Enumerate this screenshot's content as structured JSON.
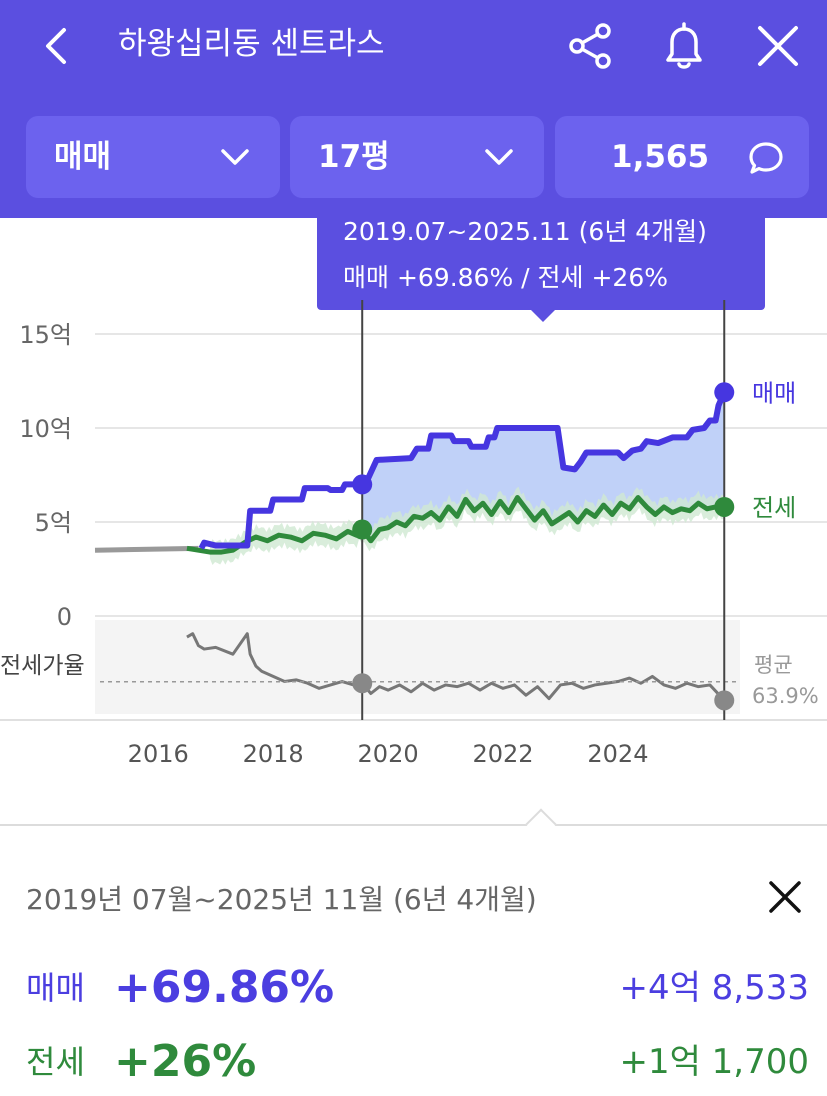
{
  "header": {
    "title": "하왕십리동 센트라스",
    "icons": [
      "back-icon",
      "share-icon",
      "bell-icon",
      "close-icon"
    ]
  },
  "filters": {
    "trade_type": "매매",
    "area": "17평",
    "comment_count": "1,565"
  },
  "tooltip": {
    "period": "2019.07~2025.11 (6년 4개월)",
    "change": "매매 +69.86%  /  전세 +26%"
  },
  "chart_data": {
    "type": "line",
    "x_ticks": [
      "2016",
      "2018",
      "2020",
      "2022",
      "2024"
    ],
    "y_ticks": [
      "15억",
      "10억",
      "5억",
      "0"
    ],
    "ylim": [
      0,
      15
    ],
    "xlim": [
      2014.9,
      2025.95
    ],
    "series": [
      {
        "name": "매매",
        "color": "#4636e0",
        "x": [
          2016.75,
          2016.8,
          2017.0,
          2017.2,
          2017.4,
          2017.55,
          2017.6,
          2017.95,
          2018.0,
          2018.5,
          2018.55,
          2018.95,
          2019.0,
          2019.2,
          2019.25,
          2019.45,
          2019.55,
          2019.65,
          2019.8,
          2020.4,
          2020.5,
          2020.7,
          2020.75,
          2021.1,
          2021.15,
          2021.4,
          2021.45,
          2021.7,
          2021.75,
          2021.85,
          2021.9,
          2022.0,
          2022.05,
          2022.95,
          2023.05,
          2023.25,
          2023.35,
          2023.45,
          2023.55,
          2024.0,
          2024.1,
          2024.25,
          2024.4,
          2024.5,
          2024.7,
          2024.95,
          2025.2,
          2025.3,
          2025.5,
          2025.6,
          2025.7,
          2025.75,
          2025.85
        ],
        "values": [
          3.6,
          3.9,
          3.75,
          3.75,
          3.75,
          3.75,
          5.6,
          5.6,
          6.2,
          6.2,
          6.8,
          6.8,
          6.7,
          6.7,
          7.0,
          7.0,
          7.0,
          7.3,
          8.3,
          8.4,
          8.9,
          8.9,
          9.6,
          9.6,
          9.3,
          9.3,
          9.0,
          9.0,
          9.5,
          9.5,
          10.0,
          10.0,
          10.0,
          10.0,
          7.9,
          7.8,
          8.2,
          8.7,
          8.7,
          8.7,
          8.4,
          8.8,
          8.9,
          9.3,
          9.2,
          9.5,
          9.5,
          9.9,
          10.0,
          10.4,
          10.4,
          11.2,
          11.9
        ]
      },
      {
        "name": "전세",
        "color": "#2f8a3c",
        "x": [
          2016.5,
          2016.7,
          2016.9,
          2017.1,
          2017.3,
          2017.5,
          2017.7,
          2017.9,
          2018.1,
          2018.3,
          2018.5,
          2018.7,
          2018.9,
          2019.1,
          2019.3,
          2019.45,
          2019.55,
          2019.7,
          2019.85,
          2020.0,
          2020.15,
          2020.3,
          2020.45,
          2020.6,
          2020.75,
          2020.9,
          2021.05,
          2021.2,
          2021.35,
          2021.5,
          2021.65,
          2021.8,
          2021.95,
          2022.1,
          2022.25,
          2022.4,
          2022.55,
          2022.7,
          2022.85,
          2023.0,
          2023.15,
          2023.3,
          2023.45,
          2023.6,
          2023.75,
          2023.9,
          2024.05,
          2024.2,
          2024.35,
          2024.5,
          2024.65,
          2024.8,
          2024.95,
          2025.1,
          2025.25,
          2025.4,
          2025.55,
          2025.7,
          2025.85
        ],
        "values": [
          3.6,
          3.5,
          3.4,
          3.4,
          3.5,
          3.9,
          4.2,
          4.0,
          4.3,
          4.2,
          4.0,
          4.4,
          4.3,
          4.1,
          4.5,
          4.3,
          4.6,
          4.0,
          4.6,
          4.7,
          5.0,
          4.8,
          5.3,
          5.2,
          5.5,
          5.1,
          5.8,
          5.3,
          6.2,
          5.6,
          6.0,
          5.4,
          6.1,
          5.5,
          6.3,
          5.7,
          5.1,
          5.6,
          4.9,
          5.2,
          5.5,
          5.0,
          5.6,
          5.3,
          5.9,
          5.4,
          6.0,
          5.7,
          6.3,
          5.8,
          5.4,
          5.8,
          5.5,
          5.7,
          5.6,
          6.0,
          5.7,
          5.8,
          5.8
        ]
      },
      {
        "name": "전세가율",
        "color": "#888888",
        "x": [
          2016.5,
          2016.6,
          2016.7,
          2016.8,
          2017.0,
          2017.3,
          2017.55,
          2017.6,
          2017.7,
          2017.8,
          2018.0,
          2018.2,
          2018.4,
          2018.6,
          2018.8,
          2019.0,
          2019.2,
          2019.4,
          2019.55,
          2019.7,
          2019.85,
          2020.0,
          2020.2,
          2020.4,
          2020.6,
          2020.8,
          2021.0,
          2021.2,
          2021.4,
          2021.6,
          2021.8,
          2022.0,
          2022.2,
          2022.4,
          2022.6,
          2022.8,
          2023.0,
          2023.2,
          2023.4,
          2023.6,
          2023.8,
          2024.0,
          2024.2,
          2024.4,
          2024.6,
          2024.8,
          2025.0,
          2025.2,
          2025.4,
          2025.6,
          2025.85
        ],
        "values": [
          0.9,
          0.92,
          0.85,
          0.83,
          0.84,
          0.8,
          0.92,
          0.8,
          0.73,
          0.7,
          0.67,
          0.64,
          0.65,
          0.63,
          0.6,
          0.62,
          0.64,
          0.62,
          0.63,
          0.57,
          0.61,
          0.59,
          0.62,
          0.58,
          0.63,
          0.59,
          0.62,
          0.61,
          0.63,
          0.59,
          0.63,
          0.6,
          0.62,
          0.56,
          0.61,
          0.54,
          0.62,
          0.63,
          0.6,
          0.62,
          0.63,
          0.64,
          0.66,
          0.63,
          0.67,
          0.62,
          0.6,
          0.63,
          0.61,
          0.62,
          0.53
        ]
      }
    ],
    "ratio_average": 0.639,
    "selection": {
      "start": 2019.55,
      "end": 2025.85
    },
    "labels": {
      "sale": "매매",
      "jeonse": "전세",
      "ratio": "전세가율",
      "avg": "평균",
      "avg_value": "63.9%"
    }
  },
  "summary": {
    "period": "2019년 07월~2025년 11월 (6년 4개월)",
    "sale_label": "매매",
    "sale_pct": "+69.86%",
    "sale_amount": "+4억 8,533",
    "jeonse_label": "전세",
    "jeonse_pct": "+26%",
    "jeonse_amount": "+1억 1,700"
  },
  "colors": {
    "brand": "#5b4fe0",
    "sale": "#4b3ee0",
    "jeonse": "#2f8a3c",
    "ratio": "#888888"
  }
}
